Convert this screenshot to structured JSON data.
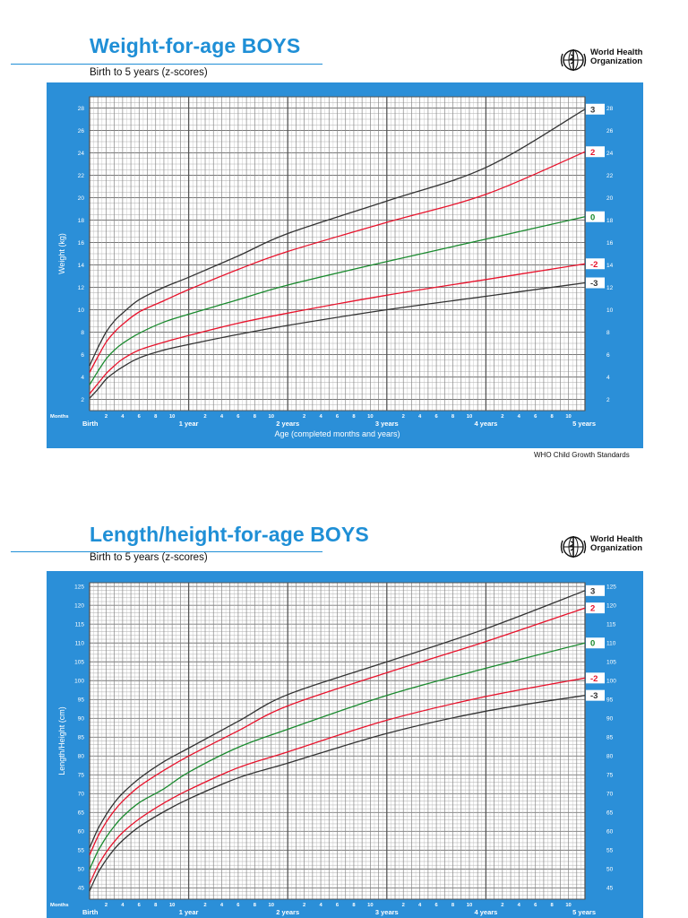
{
  "header1": {
    "title": "Weight-for-age BOYS",
    "subtitle": "Birth to 5 years (z-scores)"
  },
  "header2": {
    "title": "Length/height-for-age BOYS",
    "subtitle": "Birth to 5 years (z-scores)"
  },
  "who": {
    "line1": "World Health",
    "line2": "Organization",
    "logo_icon": "who-emblem-icon"
  },
  "credit": "WHO Child Growth Standards",
  "colors": {
    "brand_blue": "#2b8fd8",
    "z3": "#333333",
    "z2": "#e8132c",
    "z0": "#1a8a2e"
  },
  "axis_common": {
    "months_label": "Months",
    "x_month_ticks": [
      "2",
      "4",
      "6",
      "8",
      "10",
      "2",
      "4",
      "6",
      "8",
      "10",
      "2",
      "4",
      "6",
      "8",
      "10",
      "2",
      "4",
      "6",
      "8",
      "10",
      "2",
      "4",
      "6",
      "8",
      "10"
    ],
    "x_year_labels": [
      "Birth",
      "1 year",
      "2 years",
      "3 years",
      "4 years",
      "5 years"
    ]
  },
  "chart_data": [
    {
      "type": "line",
      "title": "Weight-for-age BOYS",
      "subtitle": "Birth to 5 years (z-scores)",
      "xlabel": "Age (completed months and years)",
      "ylabel": "Weight (kg)",
      "xlim": [
        0,
        60
      ],
      "ylim": [
        1,
        29
      ],
      "ytick_labels": [
        "2",
        "4",
        "6",
        "8",
        "10",
        "12",
        "14",
        "16",
        "18",
        "20",
        "22",
        "24",
        "26",
        "28"
      ],
      "grid": true,
      "x": [
        0,
        1,
        2,
        3,
        4,
        6,
        9,
        12,
        18,
        24,
        36,
        48,
        60
      ],
      "series": [
        {
          "name": "3",
          "color": "#333333",
          "values": [
            5.0,
            6.6,
            8.0,
            9.0,
            9.7,
            10.9,
            12.0,
            12.9,
            14.8,
            16.8,
            19.7,
            22.7,
            27.9
          ]
        },
        {
          "name": "2",
          "color": "#e8132c",
          "values": [
            4.4,
            5.8,
            7.1,
            8.0,
            8.7,
            9.8,
            10.8,
            11.8,
            13.6,
            15.2,
            17.8,
            20.3,
            24.1
          ]
        },
        {
          "name": "0",
          "color": "#1a8a2e",
          "values": [
            3.3,
            4.5,
            5.6,
            6.4,
            7.0,
            7.9,
            8.9,
            9.6,
            10.9,
            12.2,
            14.3,
            16.3,
            18.3
          ]
        },
        {
          "name": "-2",
          "color": "#e8132c",
          "values": [
            2.5,
            3.4,
            4.3,
            5.0,
            5.6,
            6.4,
            7.1,
            7.7,
            8.8,
            9.7,
            11.3,
            12.7,
            14.1
          ]
        },
        {
          "name": "-3",
          "color": "#333333",
          "values": [
            2.1,
            2.9,
            3.8,
            4.4,
            4.9,
            5.7,
            6.4,
            6.9,
            7.8,
            8.6,
            10.0,
            11.2,
            12.4
          ]
        }
      ]
    },
    {
      "type": "line",
      "title": "Length/height-for-age BOYS",
      "subtitle": "Birth to 5 years (z-scores)",
      "xlabel": "",
      "ylabel": "Length/Height (cm)",
      "xlim": [
        0,
        60
      ],
      "ylim": [
        42,
        126
      ],
      "ytick_labels": [
        "45",
        "50",
        "55",
        "60",
        "65",
        "70",
        "75",
        "80",
        "85",
        "90",
        "95",
        "100",
        "105",
        "110",
        "115",
        "120",
        "125"
      ],
      "grid": true,
      "x": [
        0,
        1,
        2,
        3,
        4,
        6,
        9,
        12,
        18,
        24,
        36,
        48,
        60
      ],
      "series": [
        {
          "name": "3",
          "color": "#333333",
          "values": [
            55.6,
            60.6,
            64.4,
            67.6,
            70.1,
            74.0,
            78.5,
            82.1,
            89.2,
            96.3,
            105.0,
            113.8,
            123.9
          ]
        },
        {
          "name": "2",
          "color": "#e8132c",
          "values": [
            53.7,
            58.6,
            62.4,
            65.5,
            68.0,
            71.9,
            76.2,
            80.0,
            86.7,
            93.3,
            102.1,
            110.4,
            119.3
          ]
        },
        {
          "name": "0",
          "color": "#1a8a2e",
          "values": [
            49.9,
            54.7,
            58.4,
            61.4,
            63.9,
            67.6,
            71.3,
            75.7,
            82.3,
            87.1,
            96.1,
            103.3,
            110.0
          ]
        },
        {
          "name": "-2",
          "color": "#e8132c",
          "values": [
            46.1,
            50.8,
            54.4,
            57.3,
            59.7,
            63.3,
            67.5,
            71.0,
            76.9,
            81.1,
            89.5,
            95.8,
            100.7
          ]
        },
        {
          "name": "-3",
          "color": "#333333",
          "values": [
            44.2,
            48.9,
            52.4,
            55.3,
            57.6,
            61.2,
            65.2,
            68.6,
            74.2,
            78.1,
            86.0,
            91.9,
            96.1
          ]
        }
      ]
    }
  ]
}
